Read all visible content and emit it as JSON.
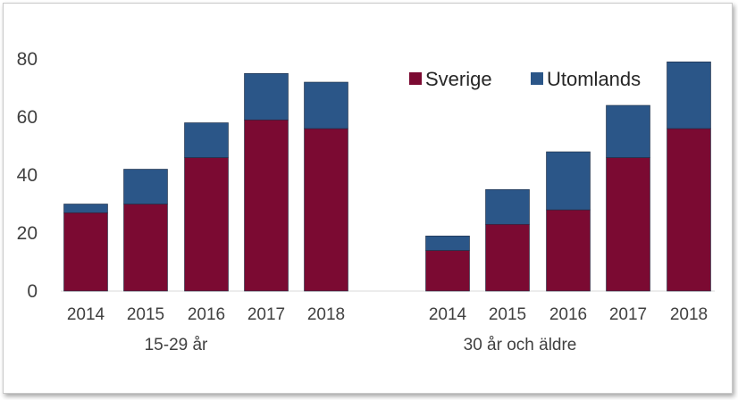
{
  "chart_data": {
    "type": "bar",
    "stacked": true,
    "title": "",
    "xlabel": "",
    "ylabel": "",
    "ylim": [
      0,
      90
    ],
    "yticks": [
      0,
      20,
      40,
      60,
      80
    ],
    "grid": false,
    "legend_position": "top-right",
    "groups": [
      {
        "label": "15-29 år",
        "categories": [
          "2014",
          "2015",
          "2016",
          "2017",
          "2018"
        ],
        "series": [
          {
            "name": "Sverige",
            "values": [
              27,
              30,
              46,
              59,
              56
            ]
          },
          {
            "name": "Utomlands",
            "values": [
              3,
              12,
              12,
              16,
              16
            ]
          }
        ]
      },
      {
        "label": "30 år och äldre",
        "categories": [
          "2014",
          "2015",
          "2016",
          "2017",
          "2018"
        ],
        "series": [
          {
            "name": "Sverige",
            "values": [
              14,
              23,
              28,
              46,
              56
            ]
          },
          {
            "name": "Utomlands",
            "values": [
              5,
              12,
              20,
              18,
              23
            ]
          }
        ]
      }
    ],
    "legend": [
      "Sverige",
      "Utomlands"
    ],
    "colors": {
      "Sverige": "#7b0a32",
      "Utomlands": "#2b5688"
    }
  }
}
